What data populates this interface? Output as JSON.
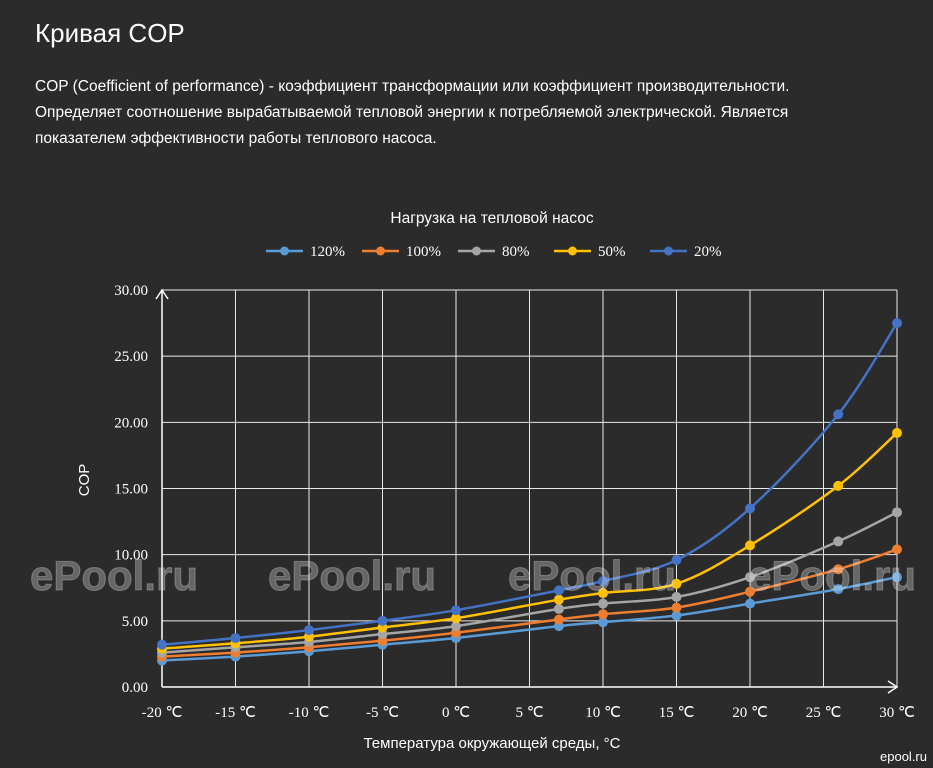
{
  "page": {
    "title": "Кривая COP",
    "intro": [
      "COP (Coefficient of performance) - коэффициент трансформации или коэффициент производительности.",
      "Определяет соотношение вырабатываемой тепловой энергии к потребляемой электрической. Является",
      "показателем эффективности работы теплового насоса."
    ],
    "watermarks": [
      "ePool.ru",
      "ePool.ru",
      "ePool.ru",
      "ePool.ru"
    ],
    "corner_mark": "epool.ru"
  },
  "chart_data": {
    "type": "line",
    "title": "Нагрузка на тепловой насос",
    "xlabel": "Температура окружающей среды, °C",
    "ylabel": "COP",
    "xlim": [
      -20,
      30
    ],
    "ylim": [
      0,
      30
    ],
    "x_ticks": [
      -20,
      -15,
      -10,
      -5,
      0,
      5,
      10,
      15,
      20,
      25,
      30
    ],
    "x_tick_labels": [
      "-20 ℃",
      "-15 ℃",
      "-10 ℃",
      "-5 ℃",
      "0 ℃",
      "5 ℃",
      "10 ℃",
      "15 ℃",
      "20 ℃",
      "25 ℃",
      "30 ℃"
    ],
    "y_ticks": [
      0,
      5,
      10,
      15,
      20,
      25,
      30
    ],
    "y_tick_labels": [
      "0.00",
      "5.00",
      "10.00",
      "15.00",
      "20.00",
      "25.00",
      "30.00"
    ],
    "grid": true,
    "legend_position": "top",
    "x": [
      -20,
      -15,
      -10,
      -5,
      0,
      7,
      10,
      15,
      20,
      26,
      30
    ],
    "series": [
      {
        "name": "120%",
        "color": "#5b9bd5",
        "values": [
          2.0,
          2.3,
          2.7,
          3.2,
          3.7,
          4.6,
          4.9,
          5.4,
          6.3,
          7.4,
          8.3
        ]
      },
      {
        "name": "100%",
        "color": "#ed7d31",
        "values": [
          2.3,
          2.6,
          3.0,
          3.5,
          4.1,
          5.1,
          5.5,
          6.0,
          7.2,
          8.9,
          10.4
        ]
      },
      {
        "name": "80%",
        "color": "#a5a5a5",
        "values": [
          2.6,
          3.0,
          3.4,
          4.0,
          4.6,
          5.9,
          6.3,
          6.8,
          8.3,
          11.0,
          13.2
        ]
      },
      {
        "name": "50%",
        "color": "#ffc000",
        "values": [
          2.9,
          3.3,
          3.8,
          4.5,
          5.2,
          6.6,
          7.1,
          7.8,
          10.7,
          15.2,
          19.2
        ]
      },
      {
        "name": "20%",
        "color": "#4472c4",
        "values": [
          3.2,
          3.7,
          4.3,
          5.0,
          5.8,
          7.3,
          8.0,
          9.6,
          13.5,
          20.6,
          27.5
        ]
      }
    ]
  }
}
